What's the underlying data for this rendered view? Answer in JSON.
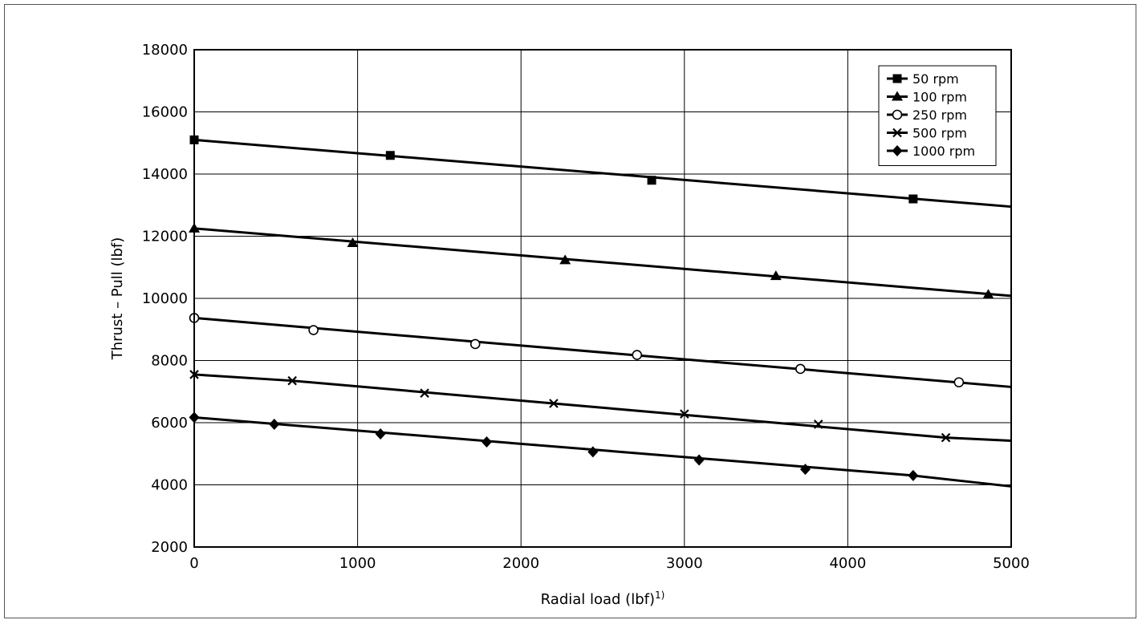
{
  "chart_data": {
    "type": "line",
    "title": "",
    "xlabel": "Radial load (lbf)",
    "xlabel_sup": "1)",
    "ylabel": "Thrust – Pull (lbf)",
    "xlim": [
      0,
      5000
    ],
    "ylim": [
      2000,
      18000
    ],
    "x_ticks": [
      "0",
      "1000",
      "2000",
      "3000",
      "4000",
      "5000"
    ],
    "y_ticks": [
      "2000",
      "4000",
      "6000",
      "8000",
      "10000",
      "12000",
      "14000",
      "16000",
      "18000"
    ],
    "grid": true,
    "legend_position": "top-right",
    "series": [
      {
        "name": "50 rpm",
        "marker": "square",
        "line": [
          [
            0,
            15100
          ],
          [
            5000,
            12950
          ]
        ],
        "points": [
          [
            0,
            15100
          ],
          [
            1200,
            14600
          ],
          [
            2800,
            13800
          ],
          [
            4400,
            13200
          ]
        ]
      },
      {
        "name": "100 rpm",
        "marker": "triangle",
        "line": [
          [
            0,
            12250
          ],
          [
            5000,
            10080
          ]
        ],
        "points": [
          [
            0,
            12250
          ],
          [
            970,
            11780
          ],
          [
            2270,
            11230
          ],
          [
            3560,
            10720
          ],
          [
            4860,
            10120
          ]
        ]
      },
      {
        "name": "250 rpm",
        "marker": "circle",
        "line": [
          [
            0,
            9370
          ],
          [
            5000,
            7150
          ]
        ],
        "points": [
          [
            0,
            9370
          ],
          [
            730,
            8980
          ],
          [
            1720,
            8530
          ],
          [
            2710,
            8180
          ],
          [
            3710,
            7730
          ],
          [
            4680,
            7300
          ]
        ]
      },
      {
        "name": "500 rpm",
        "marker": "x",
        "line": [
          [
            0,
            7550
          ],
          [
            600,
            7350
          ],
          [
            4600,
            5520
          ],
          [
            5000,
            5420
          ]
        ],
        "points": [
          [
            0,
            7550
          ],
          [
            600,
            7350
          ],
          [
            1410,
            6950
          ],
          [
            2200,
            6620
          ],
          [
            3000,
            6280
          ],
          [
            3820,
            5950
          ],
          [
            4600,
            5520
          ]
        ]
      },
      {
        "name": "1000 rpm",
        "marker": "diamond",
        "line": [
          [
            0,
            6170
          ],
          [
            4400,
            4300
          ],
          [
            5000,
            3950
          ]
        ],
        "points": [
          [
            0,
            6170
          ],
          [
            490,
            5950
          ],
          [
            1140,
            5640
          ],
          [
            1790,
            5380
          ],
          [
            2440,
            5060
          ],
          [
            3090,
            4800
          ],
          [
            3740,
            4500
          ],
          [
            4400,
            4300
          ]
        ]
      }
    ]
  }
}
